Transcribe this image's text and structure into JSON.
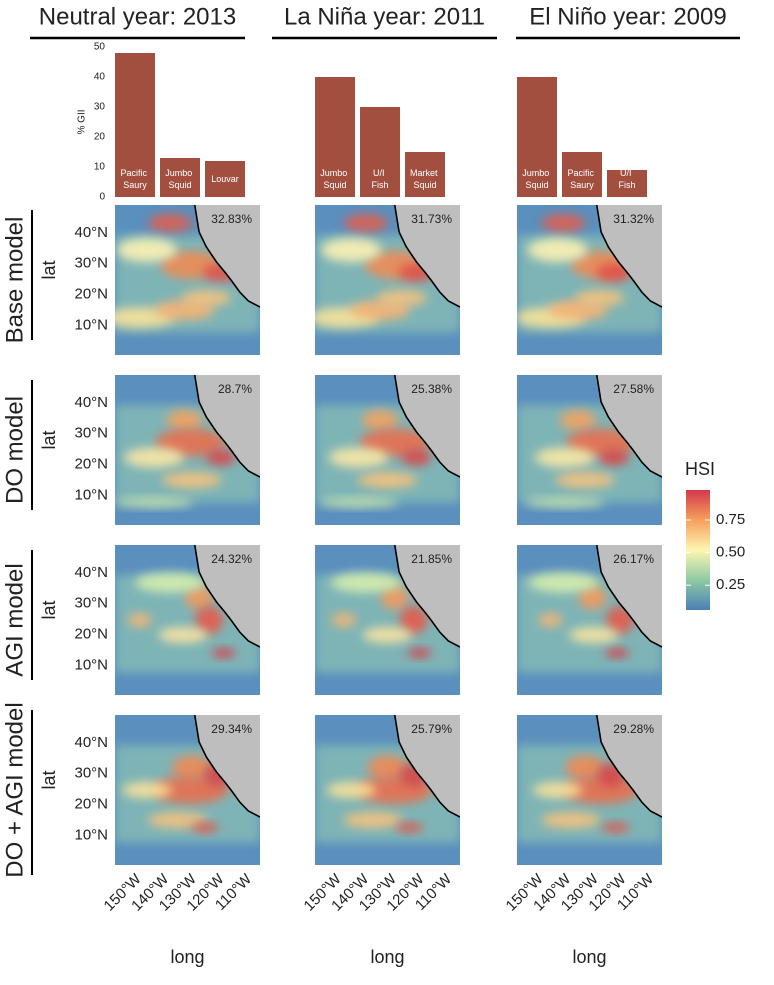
{
  "chart_data": [
    {
      "type": "bar",
      "title": "Neutral year: 2013",
      "categories": [
        "Pacific Saury",
        "Jumbo Squid",
        "Louvar"
      ],
      "values": [
        48,
        13,
        12
      ],
      "color": "#a24f3f",
      "ylim": [
        0,
        50
      ],
      "yticks": [
        0,
        10,
        20,
        30,
        40,
        50
      ],
      "ylabel": "% GII"
    },
    {
      "type": "bar",
      "title": "La Niña year: 2011",
      "categories": [
        "Jumbo Squid",
        "U/I Fish",
        "Market Squid"
      ],
      "values": [
        40,
        30,
        15
      ],
      "color": "#a24f3f",
      "ylim": [
        0,
        50
      ]
    },
    {
      "type": "bar",
      "title": "El Niño year: 2009",
      "categories": [
        "Jumbo Squid",
        "Pacific Saury",
        "U/I Fish"
      ],
      "values": [
        40,
        15,
        9
      ],
      "color": "#a24f3f",
      "ylim": [
        0,
        50
      ]
    },
    {
      "type": "map_grid",
      "rows": [
        "Base model",
        "DO model",
        "AGI model",
        "DO + AGI model"
      ],
      "annotations": [
        [
          "32.83%",
          "31.73%",
          "31.32%"
        ],
        [
          "28.7%",
          "25.38%",
          "27.58%"
        ],
        [
          "24.32%",
          "21.85%",
          "26.17%"
        ],
        [
          "29.34%",
          "25.79%",
          "29.28%"
        ]
      ],
      "xlabel": "long",
      "ylabel": "lat",
      "xlim": [
        -156.5,
        -104
      ],
      "ylim": [
        0.5,
        49
      ],
      "xticks": [
        {
          "value": -150,
          "label": "150°W"
        },
        {
          "value": -140,
          "label": "140°W"
        },
        {
          "value": -130,
          "label": "130°W"
        },
        {
          "value": -120,
          "label": "120°W"
        },
        {
          "value": -110,
          "label": "110°W"
        }
      ],
      "yticks": [
        {
          "value": 10,
          "label": "10°N"
        },
        {
          "value": 20,
          "label": "20°N"
        },
        {
          "value": 30,
          "label": "30°N"
        },
        {
          "value": 40,
          "label": "40°N"
        }
      ],
      "legend": {
        "title": "HSI",
        "lim": [
          0.06,
          0.98
        ],
        "ticks": [
          0.25,
          {
            "value": 0.5,
            "label": "0.50"
          },
          0.75
        ]
      }
    }
  ]
}
